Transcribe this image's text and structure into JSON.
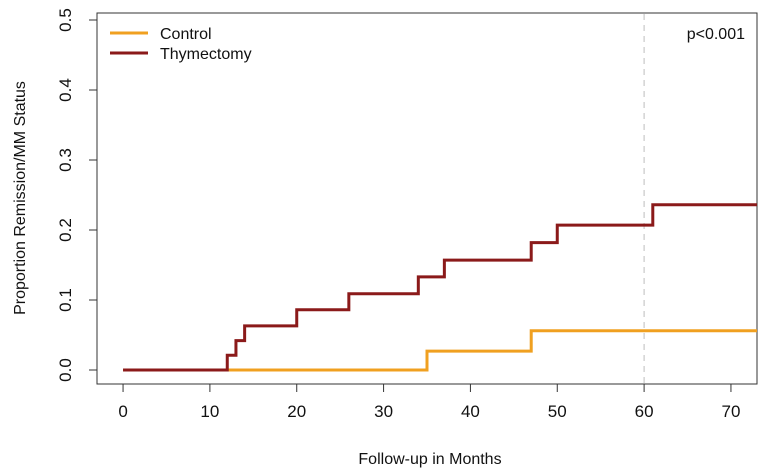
{
  "chart_data": {
    "type": "line",
    "title": "",
    "xlabel": "Follow-up in Months",
    "ylabel": "Proportion Remission/MM Status",
    "xlim": [
      -3,
      73
    ],
    "ylim": [
      -0.02,
      0.51
    ],
    "x_ticks": [
      0,
      10,
      20,
      30,
      40,
      50,
      60,
      70
    ],
    "y_ticks": [
      0.0,
      0.1,
      0.2,
      0.3,
      0.4,
      0.5
    ],
    "x_tick_labels": [
      "0",
      "10",
      "20",
      "30",
      "40",
      "50",
      "60",
      "70"
    ],
    "y_tick_labels": [
      "0.0",
      "0.1",
      "0.2",
      "0.3",
      "0.4",
      "0.5"
    ],
    "grid": false,
    "legend_position": "top-left",
    "step": true,
    "reference_line": {
      "x": 60,
      "style": "dashed",
      "color": "#c8c8c8"
    },
    "annotation": {
      "text": "p<0.001",
      "position": "top-right"
    },
    "series": [
      {
        "name": "Control",
        "color": "#f0a020",
        "x": [
          0,
          35,
          47,
          73
        ],
        "y": [
          0.0,
          0.027,
          0.056,
          0.056
        ]
      },
      {
        "name": "Thymectomy",
        "color": "#8b1a1a",
        "x": [
          0,
          12,
          13,
          14,
          20,
          26,
          34,
          37,
          47,
          50,
          61,
          73
        ],
        "y": [
          0.0,
          0.021,
          0.042,
          0.063,
          0.086,
          0.109,
          0.133,
          0.157,
          0.182,
          0.207,
          0.236,
          0.236
        ]
      }
    ]
  }
}
